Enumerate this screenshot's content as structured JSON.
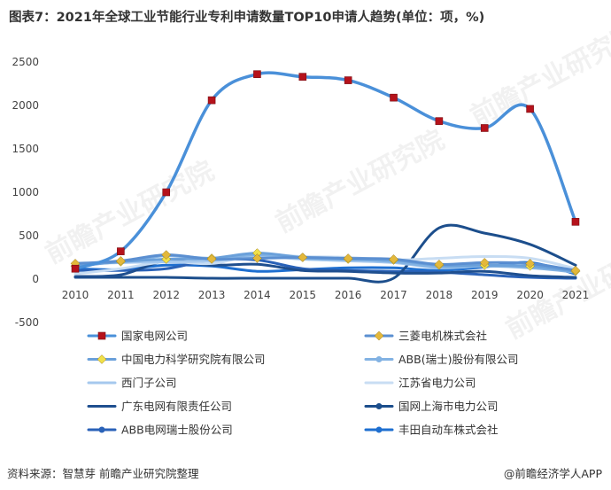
{
  "title": "图表7：2021年全球工业节能行业专利申请数量TOP10申请人趋势(单位：项，%)",
  "source": "资料来源：智慧芽 前瞻产业研究院整理",
  "brand": "@前瞻经济学人APP",
  "watermark": "前瞻产业研究院",
  "chart_data": {
    "type": "line",
    "x": [
      "2010",
      "2011",
      "2012",
      "2013",
      "2014",
      "2015",
      "2016",
      "2017",
      "2018",
      "2019",
      "2020",
      "2021"
    ],
    "ylim": [
      -500,
      2500
    ],
    "yticks": [
      "-500",
      "0",
      "500",
      "1000",
      "1500",
      "2000",
      "2500"
    ],
    "legend_position": "bottom",
    "series": [
      {
        "name": "国家电网公司",
        "color": "#4a90d9",
        "marker": "square",
        "marker_color": "#b5121b",
        "values": [
          120,
          320,
          1000,
          2060,
          2360,
          2330,
          2290,
          2090,
          1820,
          1740,
          1960,
          660
        ]
      },
      {
        "name": "三菱电机株式会社",
        "color": "#5b8fd1",
        "marker": "diamond",
        "marker_color": "#e3b83b",
        "values": [
          180,
          210,
          280,
          230,
          240,
          250,
          240,
          230,
          170,
          190,
          180,
          100
        ]
      },
      {
        "name": "中国电力科学研究院有限公司",
        "color": "#6aa0da",
        "marker": "diamond",
        "marker_color": "#f0e04a",
        "values": [
          150,
          200,
          230,
          240,
          300,
          250,
          230,
          220,
          160,
          160,
          150,
          90
        ]
      },
      {
        "name": "ABB(瑞士)股份有限公司",
        "color": "#82b2e3",
        "marker": "circle",
        "marker_color": "#82b2e3",
        "values": [
          180,
          200,
          270,
          240,
          280,
          240,
          230,
          200,
          140,
          150,
          130,
          80
        ]
      },
      {
        "name": "西门子公司",
        "color": "#a5c8ee",
        "marker": "none",
        "marker_color": "#a5c8ee",
        "values": [
          170,
          190,
          200,
          210,
          260,
          230,
          210,
          190,
          130,
          150,
          140,
          80
        ]
      },
      {
        "name": "江苏省电力公司",
        "color": "#c8ddf3",
        "marker": "none",
        "marker_color": "#c8ddf3",
        "values": [
          60,
          120,
          200,
          180,
          280,
          260,
          250,
          220,
          240,
          260,
          240,
          120
        ]
      },
      {
        "name": "广东电网有限责任公司",
        "color": "#1f4f8f",
        "marker": "none",
        "marker_color": "#1f4f8f",
        "values": [
          30,
          50,
          210,
          160,
          170,
          100,
          90,
          70,
          70,
          90,
          40,
          20
        ]
      },
      {
        "name": "国网上海市电力公司",
        "color": "#1c4e8c",
        "marker": "circle",
        "marker_color": "#1c4e8c",
        "values": [
          20,
          20,
          20,
          10,
          10,
          10,
          10,
          10,
          590,
          530,
          400,
          160
        ]
      },
      {
        "name": "ABB电网瑞士股份公司",
        "color": "#2a62b8",
        "marker": "circle",
        "marker_color": "#2a62b8",
        "values": [
          100,
          100,
          120,
          220,
          220,
          120,
          100,
          90,
          80,
          50,
          20,
          10
        ]
      },
      {
        "name": "丰田自动车株式会社",
        "color": "#1e6fd0",
        "marker": "circle",
        "marker_color": "#1e6fd0",
        "values": [
          120,
          110,
          160,
          150,
          90,
          110,
          130,
          130,
          100,
          140,
          190,
          60
        ]
      }
    ]
  }
}
